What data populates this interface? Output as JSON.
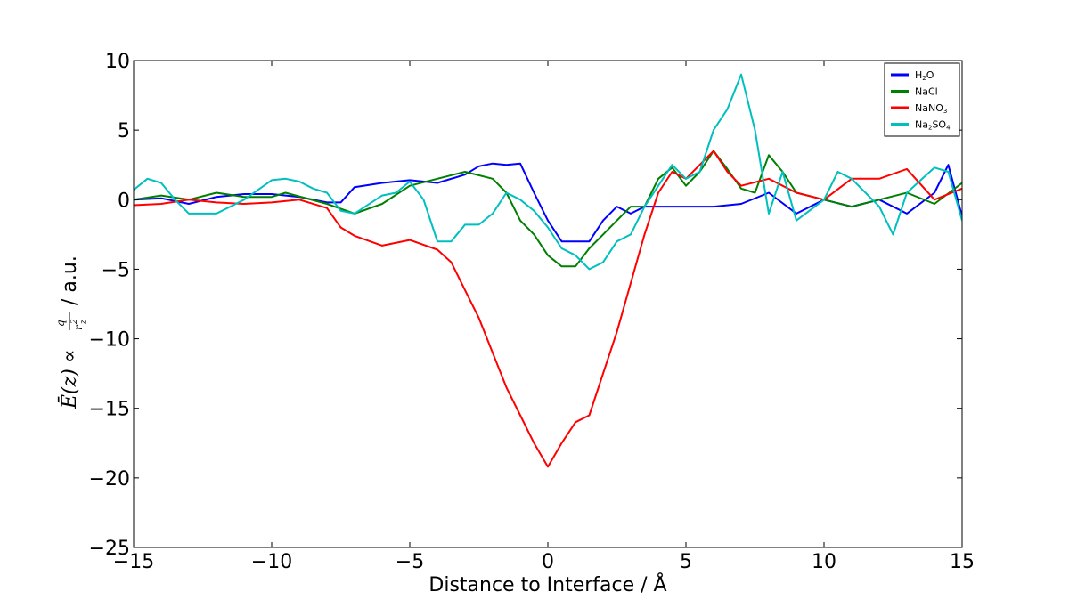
{
  "chart_data": {
    "type": "line",
    "xlabel": "Distance to Interface / Å",
    "ylabel": {
      "lhs": "Ē(z) ∝",
      "numerator": "q",
      "denominator": "r",
      "sub": "z",
      "sup": "2",
      "unit": "/ a.u."
    },
    "xlim": [
      -15,
      15
    ],
    "ylim": [
      -25,
      10
    ],
    "xticks": [
      -15,
      -10,
      -5,
      0,
      5,
      10,
      15
    ],
    "yticks": [
      -25,
      -20,
      -15,
      -10,
      -5,
      0,
      5,
      10
    ],
    "legend_position": "top-right",
    "grid": false,
    "series": [
      {
        "name": "H2O",
        "legend": {
          "base": "H",
          "sub": "2",
          "rest": "O"
        },
        "color": "#0000ff",
        "points": [
          [
            -15,
            0.0
          ],
          [
            -14,
            0.1
          ],
          [
            -13,
            -0.3
          ],
          [
            -12,
            0.2
          ],
          [
            -11,
            0.4
          ],
          [
            -10,
            0.4
          ],
          [
            -9,
            0.2
          ],
          [
            -8,
            -0.2
          ],
          [
            -7.5,
            -0.2
          ],
          [
            -7,
            0.9
          ],
          [
            -6,
            1.2
          ],
          [
            -5,
            1.4
          ],
          [
            -4,
            1.2
          ],
          [
            -3,
            1.8
          ],
          [
            -2.5,
            2.4
          ],
          [
            -2,
            2.6
          ],
          [
            -1.5,
            2.5
          ],
          [
            -1,
            2.6
          ],
          [
            -0.5,
            0.5
          ],
          [
            0,
            -1.5
          ],
          [
            0.5,
            -3.0
          ],
          [
            1,
            -3.0
          ],
          [
            1.5,
            -3.0
          ],
          [
            2,
            -1.5
          ],
          [
            2.5,
            -0.5
          ],
          [
            3,
            -1.0
          ],
          [
            3.5,
            -0.5
          ],
          [
            4,
            -0.5
          ],
          [
            5,
            -0.5
          ],
          [
            6,
            -0.5
          ],
          [
            7,
            -0.3
          ],
          [
            8,
            0.5
          ],
          [
            9,
            -1.0
          ],
          [
            10,
            0.0
          ],
          [
            11,
            -0.5
          ],
          [
            12,
            0.0
          ],
          [
            13,
            -1.0
          ],
          [
            14,
            0.5
          ],
          [
            14.5,
            2.5
          ],
          [
            15,
            -1.2
          ]
        ]
      },
      {
        "name": "NaCl",
        "legend": {
          "base": "NaCl",
          "sub": "",
          "rest": ""
        },
        "color": "#008000",
        "points": [
          [
            -15,
            0.0
          ],
          [
            -14,
            0.3
          ],
          [
            -13,
            0.0
          ],
          [
            -12,
            0.5
          ],
          [
            -11,
            0.2
          ],
          [
            -10,
            0.2
          ],
          [
            -9.5,
            0.5
          ],
          [
            -8,
            -0.3
          ],
          [
            -7,
            -1.0
          ],
          [
            -6,
            -0.3
          ],
          [
            -5,
            1.0
          ],
          [
            -4,
            1.5
          ],
          [
            -3,
            2.0
          ],
          [
            -2,
            1.5
          ],
          [
            -1.5,
            0.5
          ],
          [
            -1,
            -1.5
          ],
          [
            -0.5,
            -2.5
          ],
          [
            0,
            -4.0
          ],
          [
            0.5,
            -4.8
          ],
          [
            1,
            -4.8
          ],
          [
            1.5,
            -3.5
          ],
          [
            2,
            -2.5
          ],
          [
            2.5,
            -1.5
          ],
          [
            3,
            -0.5
          ],
          [
            3.5,
            -0.5
          ],
          [
            4,
            1.5
          ],
          [
            4.5,
            2.3
          ],
          [
            5,
            1.0
          ],
          [
            5.5,
            2.0
          ],
          [
            6,
            3.5
          ],
          [
            6.5,
            2.2
          ],
          [
            7,
            0.8
          ],
          [
            7.5,
            0.5
          ],
          [
            8,
            3.2
          ],
          [
            8.5,
            2.0
          ],
          [
            9,
            0.5
          ],
          [
            10,
            0.0
          ],
          [
            11,
            -0.5
          ],
          [
            12,
            0.0
          ],
          [
            13,
            0.5
          ],
          [
            14,
            -0.3
          ],
          [
            15,
            1.2
          ]
        ]
      },
      {
        "name": "NaNO3",
        "legend": {
          "base": "NaNO",
          "sub": "3",
          "rest": ""
        },
        "color": "#ff0000",
        "points": [
          [
            -15,
            -0.4
          ],
          [
            -14,
            -0.3
          ],
          [
            -13,
            0.0
          ],
          [
            -12,
            -0.2
          ],
          [
            -11,
            -0.3
          ],
          [
            -10,
            -0.2
          ],
          [
            -9,
            0.0
          ],
          [
            -8,
            -0.6
          ],
          [
            -7.5,
            -2.0
          ],
          [
            -7,
            -2.6
          ],
          [
            -6,
            -3.3
          ],
          [
            -5,
            -2.9
          ],
          [
            -4,
            -3.6
          ],
          [
            -3.5,
            -4.5
          ],
          [
            -3,
            -6.5
          ],
          [
            -2.5,
            -8.5
          ],
          [
            -2,
            -11.0
          ],
          [
            -1.5,
            -13.5
          ],
          [
            -1,
            -15.5
          ],
          [
            -0.5,
            -17.5
          ],
          [
            0,
            -19.2
          ],
          [
            0.5,
            -17.5
          ],
          [
            1,
            -16.0
          ],
          [
            1.5,
            -15.5
          ],
          [
            2,
            -12.5
          ],
          [
            2.5,
            -9.5
          ],
          [
            3,
            -6.0
          ],
          [
            3.5,
            -2.5
          ],
          [
            4,
            0.5
          ],
          [
            4.5,
            2.0
          ],
          [
            5,
            1.5
          ],
          [
            5.5,
            2.5
          ],
          [
            6,
            3.5
          ],
          [
            6.5,
            2.0
          ],
          [
            7,
            1.0
          ],
          [
            8,
            1.5
          ],
          [
            9,
            0.5
          ],
          [
            10,
            0.0
          ],
          [
            11,
            1.5
          ],
          [
            12,
            1.5
          ],
          [
            13,
            2.2
          ],
          [
            14,
            0.0
          ],
          [
            15,
            0.8
          ]
        ]
      },
      {
        "name": "Na2SO4",
        "legend": {
          "base": "Na",
          "sub": "2",
          "rest": "SO",
          "sub2": "4"
        },
        "color": "#00bfbf",
        "points": [
          [
            -15,
            0.7
          ],
          [
            -14.5,
            1.5
          ],
          [
            -14,
            1.2
          ],
          [
            -13.5,
            0.0
          ],
          [
            -13,
            -1.0
          ],
          [
            -12,
            -1.0
          ],
          [
            -11,
            0.0
          ],
          [
            -10,
            1.4
          ],
          [
            -9.5,
            1.5
          ],
          [
            -9,
            1.3
          ],
          [
            -8.5,
            0.8
          ],
          [
            -8,
            0.5
          ],
          [
            -7.5,
            -0.8
          ],
          [
            -7,
            -1.0
          ],
          [
            -6,
            0.3
          ],
          [
            -5.5,
            0.5
          ],
          [
            -5,
            1.3
          ],
          [
            -4.5,
            0.0
          ],
          [
            -4,
            -3.0
          ],
          [
            -3.5,
            -3.0
          ],
          [
            -3,
            -1.8
          ],
          [
            -2.5,
            -1.8
          ],
          [
            -2,
            -1.0
          ],
          [
            -1.5,
            0.5
          ],
          [
            -1,
            0.0
          ],
          [
            -0.5,
            -0.8
          ],
          [
            0,
            -2.0
          ],
          [
            0.5,
            -3.5
          ],
          [
            1,
            -4.0
          ],
          [
            1.5,
            -5.0
          ],
          [
            2,
            -4.5
          ],
          [
            2.5,
            -3.0
          ],
          [
            3,
            -2.5
          ],
          [
            3.5,
            -0.5
          ],
          [
            4,
            1.0
          ],
          [
            4.5,
            2.5
          ],
          [
            5,
            1.5
          ],
          [
            5.5,
            2.0
          ],
          [
            6,
            5.0
          ],
          [
            6.5,
            6.5
          ],
          [
            7,
            9.0
          ],
          [
            7.5,
            5.0
          ],
          [
            8,
            -1.0
          ],
          [
            8.5,
            2.0
          ],
          [
            9,
            -1.5
          ],
          [
            10,
            0.0
          ],
          [
            10.5,
            2.0
          ],
          [
            11,
            1.5
          ],
          [
            12,
            -0.5
          ],
          [
            12.5,
            -2.5
          ],
          [
            13,
            0.5
          ],
          [
            14,
            2.3
          ],
          [
            14.5,
            2.0
          ],
          [
            15,
            -1.5
          ]
        ]
      }
    ]
  }
}
